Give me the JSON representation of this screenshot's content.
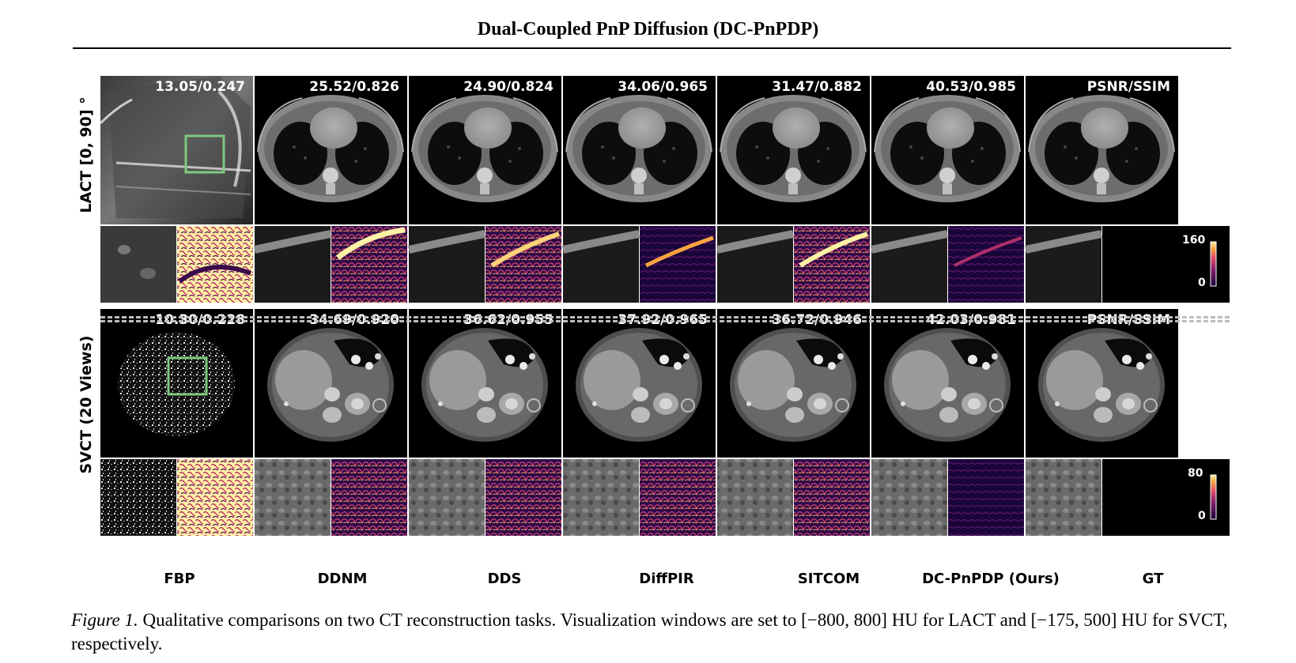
{
  "header": {
    "title": "Dual-Coupled PnP Diffusion (DC-PnPDP)"
  },
  "rows": [
    {
      "label": "LACT [0, 90] °",
      "metrics": [
        "13.05/0.247",
        "25.52/0.826",
        "24.90/0.824",
        "34.06/0.965",
        "31.47/0.882",
        "40.53/0.985",
        "PSNR/SSIM"
      ],
      "colorbar": {
        "max": "160",
        "min": "0"
      }
    },
    {
      "label": "SVCT (20 Views)",
      "metrics": [
        "10.30/0.228",
        "34.69/0.920",
        "36.62/0.955",
        "37.92/0.965",
        "36.72/0.946",
        "42.03/0.981",
        "PSNR/SSIM"
      ],
      "colorbar": {
        "max": "80",
        "min": "0"
      }
    }
  ],
  "methods": [
    "FBP",
    "DDNM",
    "DDS",
    "DiffPIR",
    "SITCOM",
    "DC-PnPDP (Ours)",
    "GT"
  ],
  "caption": {
    "figure_label": "Figure 1.",
    "text": "Qualitative comparisons on two CT reconstruction tasks. Visualization windows are set to [−800, 800] HU for LACT and [−175, 500] HU for SVCT, respectively."
  },
  "colors": {
    "roi_box": "#7fc97f",
    "heat_low": "#1a0538",
    "heat_mid": "#c2306a",
    "heat_high": "#fcf2a5"
  }
}
